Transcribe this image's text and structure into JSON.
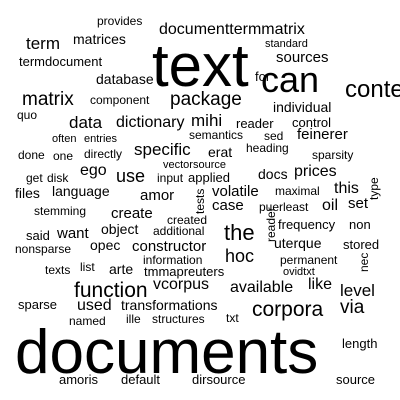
{
  "word_cloud": {
    "text_color": "#000000",
    "background_color": "#ffffff",
    "words": [
      {
        "text": "documents",
        "weight": 5
      },
      {
        "text": "text",
        "weight": 4
      },
      {
        "text": "can",
        "weight": 3
      },
      {
        "text": "content",
        "weight": 3
      },
      {
        "text": "corpora",
        "weight": 2
      },
      {
        "text": "package",
        "weight": 2
      },
      {
        "text": "matrix",
        "weight": 2
      },
      {
        "text": "function",
        "weight": 2
      },
      {
        "text": "term",
        "weight": 2
      },
      {
        "text": "documenttermmatrix",
        "weight": 2
      },
      {
        "text": "the",
        "weight": 2
      },
      {
        "text": "hoc",
        "weight": 2
      },
      {
        "text": "use",
        "weight": 2
      },
      {
        "text": "data",
        "weight": 2
      },
      {
        "text": "dictionary",
        "weight": 2
      },
      {
        "text": "mihi",
        "weight": 2
      },
      {
        "text": "specific",
        "weight": 2
      },
      {
        "text": "via",
        "weight": 2
      },
      {
        "text": "level",
        "weight": 2
      },
      {
        "text": "vcorpus",
        "weight": 2
      },
      {
        "text": "available",
        "weight": 2
      },
      {
        "text": "like",
        "weight": 2
      },
      {
        "text": "sources",
        "weight": 2
      },
      {
        "text": "matrices",
        "weight": 1
      },
      {
        "text": "termdocument",
        "weight": 1
      },
      {
        "text": "database",
        "weight": 1
      },
      {
        "text": "provides",
        "weight": 1
      },
      {
        "text": "for",
        "weight": 1
      },
      {
        "text": "standard",
        "weight": 1
      },
      {
        "text": "control",
        "weight": 1
      },
      {
        "text": "reader",
        "weight": 1
      },
      {
        "text": "individual",
        "weight": 1
      },
      {
        "text": "component",
        "weight": 1
      },
      {
        "text": "quo",
        "weight": 1
      },
      {
        "text": "semantics",
        "weight": 1
      },
      {
        "text": "sed",
        "weight": 1
      },
      {
        "text": "feinerer",
        "weight": 1
      },
      {
        "text": "often",
        "weight": 1
      },
      {
        "text": "entries",
        "weight": 1
      },
      {
        "text": "erat",
        "weight": 1
      },
      {
        "text": "heading",
        "weight": 1
      },
      {
        "text": "done",
        "weight": 1
      },
      {
        "text": "one",
        "weight": 1
      },
      {
        "text": "directly",
        "weight": 1
      },
      {
        "text": "vectorsource",
        "weight": 1
      },
      {
        "text": "sparsity",
        "weight": 1
      },
      {
        "text": "get",
        "weight": 1
      },
      {
        "text": "disk",
        "weight": 1
      },
      {
        "text": "ego",
        "weight": 1
      },
      {
        "text": "input",
        "weight": 1
      },
      {
        "text": "applied",
        "weight": 1
      },
      {
        "text": "docs",
        "weight": 1
      },
      {
        "text": "prices",
        "weight": 1
      },
      {
        "text": "files",
        "weight": 1
      },
      {
        "text": "language",
        "weight": 1
      },
      {
        "text": "amor",
        "weight": 1
      },
      {
        "text": "volatile",
        "weight": 1
      },
      {
        "text": "maximal",
        "weight": 1
      },
      {
        "text": "this",
        "weight": 1
      },
      {
        "text": "type",
        "weight": 1
      },
      {
        "text": "stemming",
        "weight": 1
      },
      {
        "text": "tests",
        "weight": 1
      },
      {
        "text": "case",
        "weight": 1
      },
      {
        "text": "puerleast",
        "weight": 1
      },
      {
        "text": "oil",
        "weight": 1
      },
      {
        "text": "set",
        "weight": 1
      },
      {
        "text": "create",
        "weight": 1
      },
      {
        "text": "created",
        "weight": 1
      },
      {
        "text": "frequency",
        "weight": 1
      },
      {
        "text": "non",
        "weight": 1
      },
      {
        "text": "said",
        "weight": 1
      },
      {
        "text": "want",
        "weight": 1
      },
      {
        "text": "object",
        "weight": 1
      },
      {
        "text": "additional",
        "weight": 1
      },
      {
        "text": "reader",
        "weight": 1
      },
      {
        "text": "nonsparse",
        "weight": 1
      },
      {
        "text": "opec",
        "weight": 1
      },
      {
        "text": "constructor",
        "weight": 1
      },
      {
        "text": "uterque",
        "weight": 1
      },
      {
        "text": "stored",
        "weight": 1
      },
      {
        "text": "information",
        "weight": 1
      },
      {
        "text": "permanent",
        "weight": 1
      },
      {
        "text": "nec",
        "weight": 1
      },
      {
        "text": "texts",
        "weight": 1
      },
      {
        "text": "list",
        "weight": 1
      },
      {
        "text": "arte",
        "weight": 1
      },
      {
        "text": "tmmapreuters",
        "weight": 1
      },
      {
        "text": "ovidtxt",
        "weight": 1
      },
      {
        "text": "sparse",
        "weight": 1
      },
      {
        "text": "used",
        "weight": 1
      },
      {
        "text": "transformations",
        "weight": 1
      },
      {
        "text": "named",
        "weight": 1
      },
      {
        "text": "ille",
        "weight": 1
      },
      {
        "text": "structures",
        "weight": 1
      },
      {
        "text": "txt",
        "weight": 1
      },
      {
        "text": "length",
        "weight": 1
      },
      {
        "text": "amoris",
        "weight": 1
      },
      {
        "text": "default",
        "weight": 1
      },
      {
        "text": "dirsource",
        "weight": 1
      },
      {
        "text": "source",
        "weight": 1
      }
    ]
  }
}
